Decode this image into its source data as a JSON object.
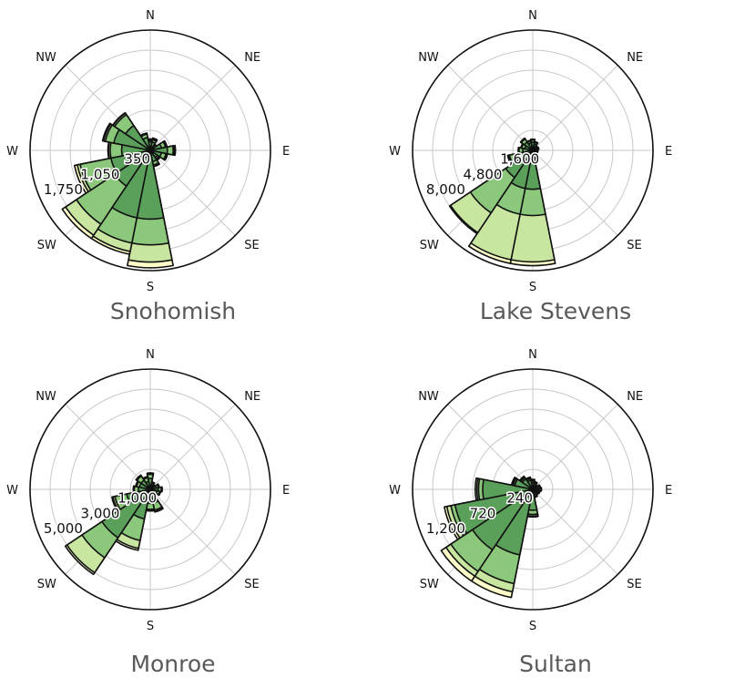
{
  "compass_labels": [
    "N",
    "NE",
    "E",
    "SE",
    "S",
    "SW",
    "W",
    "NW"
  ],
  "colors": {
    "ring_outer": "#fffdc8",
    "ring_2": "#c8e6a0",
    "ring_3": "#8cc87c",
    "ring_inner": "#5aa05a",
    "edge": "#111111",
    "grid": "#c8c8c8"
  },
  "chart_data": [
    {
      "type": "wind_rose",
      "title": "Snohomish",
      "directions": [
        "N",
        "NNE",
        "NE",
        "ENE",
        "E",
        "ESE",
        "SE",
        "SSE",
        "S",
        "SSW",
        "SW",
        "WSW",
        "W",
        "WNW",
        "NW",
        "NNW"
      ],
      "r_ticks": [
        350,
        1050,
        1750
      ],
      "r_tick_labels": [
        "350",
        "1,050",
        "1,750"
      ],
      "r_max": 2100,
      "grid_rings": 5,
      "series": [
        {
          "values": [
            150,
            150,
            80,
            200,
            300,
            200,
            150,
            200,
            1200,
            1200,
            750,
            700,
            500,
            650,
            520,
            230
          ]
        },
        {
          "values": [
            175,
            190,
            110,
            270,
            400,
            280,
            180,
            260,
            1650,
            1650,
            1550,
            1250,
            700,
            800,
            750,
            290
          ]
        },
        {
          "values": [
            190,
            210,
            120,
            290,
            420,
            300,
            200,
            280,
            1950,
            1800,
            1780,
            1300,
            730,
            830,
            780,
            300
          ]
        },
        {
          "values": [
            200,
            220,
            130,
            300,
            440,
            310,
            210,
            290,
            2050,
            1850,
            1850,
            1350,
            740,
            850,
            790,
            310
          ]
        }
      ]
    },
    {
      "type": "wind_rose",
      "title": "Lake Stevens",
      "directions": [
        "N",
        "NNE",
        "NE",
        "ENE",
        "E",
        "ESE",
        "SE",
        "SSE",
        "S",
        "SSW",
        "SW",
        "WSW",
        "W",
        "WNW",
        "NW",
        "NNW"
      ],
      "r_ticks": [
        1600,
        4800,
        8000
      ],
      "r_tick_labels": [
        "1,600",
        "4,800",
        "8,000"
      ],
      "r_max": 9600,
      "grid_rings": 5,
      "series": [
        {
          "values": [
            650,
            500,
            300,
            350,
            300,
            300,
            250,
            450,
            3100,
            3100,
            2600,
            1300,
            800,
            650,
            800,
            600
          ]
        },
        {
          "values": [
            820,
            650,
            400,
            450,
            380,
            380,
            330,
            600,
            5200,
            5200,
            6000,
            1900,
            1100,
            900,
            1100,
            760
          ]
        },
        {
          "values": [
            870,
            700,
            430,
            480,
            400,
            400,
            350,
            650,
            8900,
            8900,
            7900,
            2000,
            1150,
            950,
            1150,
            800
          ]
        },
        {
          "values": [
            900,
            720,
            450,
            500,
            420,
            420,
            370,
            670,
            9200,
            9200,
            8000,
            2050,
            1170,
            980,
            1180,
            830
          ]
        }
      ]
    },
    {
      "type": "wind_rose",
      "title": "Monroe",
      "directions": [
        "N",
        "NNE",
        "NE",
        "ENE",
        "E",
        "ESE",
        "SE",
        "SSE",
        "S",
        "SSW",
        "SW",
        "WSW",
        "W",
        "WNW",
        "NW",
        "NNW"
      ],
      "r_ticks": [
        1000,
        3000,
        5000
      ],
      "r_tick_labels": [
        "1,000",
        "3,000",
        "5,000"
      ],
      "r_max": 6000,
      "grid_rings": 5,
      "series": [
        {
          "values": [
            550,
            250,
            180,
            300,
            400,
            350,
            200,
            700,
            700,
            1500,
            2900,
            1200,
            600,
            550,
            550,
            400
          ]
        },
        {
          "values": [
            750,
            330,
            250,
            420,
            550,
            480,
            280,
            1050,
            1000,
            2600,
            4100,
            1800,
            800,
            700,
            800,
            600
          ]
        },
        {
          "values": [
            800,
            360,
            270,
            450,
            580,
            510,
            300,
            1120,
            1050,
            3000,
            5000,
            1900,
            830,
            730,
            840,
            640
          ]
        },
        {
          "values": [
            820,
            380,
            280,
            470,
            600,
            530,
            320,
            1150,
            1080,
            3100,
            5100,
            1950,
            850,
            750,
            860,
            660
          ]
        }
      ]
    },
    {
      "type": "wind_rose",
      "title": "Sultan",
      "directions": [
        "N",
        "NNE",
        "NE",
        "ENE",
        "E",
        "ESE",
        "SE",
        "SSE",
        "S",
        "SSW",
        "SW",
        "WSW",
        "W",
        "WNW",
        "NW",
        "NNW"
      ],
      "r_ticks": [
        240,
        720,
        1200
      ],
      "r_tick_labels": [
        "240",
        "720",
        "1,200"
      ],
      "r_max": 1440,
      "grid_rings": 5,
      "series": [
        {
          "values": [
            80,
            60,
            40,
            60,
            70,
            60,
            50,
            70,
            250,
            800,
            870,
            950,
            600,
            220,
            150,
            110
          ]
        },
        {
          "values": [
            100,
            80,
            55,
            80,
            90,
            80,
            70,
            90,
            300,
            1150,
            1180,
            1000,
            650,
            240,
            170,
            130
          ]
        },
        {
          "values": [
            110,
            90,
            60,
            90,
            100,
            85,
            75,
            95,
            320,
            1250,
            1250,
            1050,
            670,
            250,
            180,
            140
          ]
        },
        {
          "values": [
            120,
            95,
            65,
            95,
            105,
            90,
            80,
            100,
            330,
            1320,
            1320,
            1080,
            690,
            260,
            190,
            150
          ]
        }
      ]
    }
  ]
}
